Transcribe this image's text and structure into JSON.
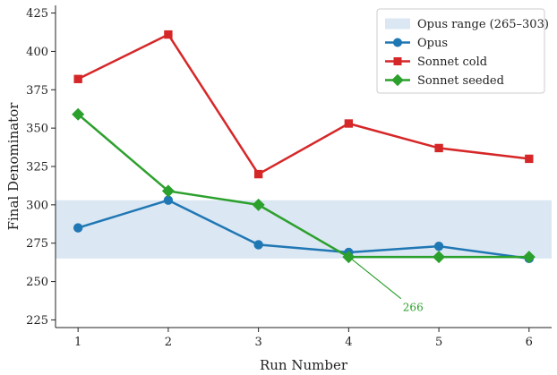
{
  "chart_data": {
    "type": "line",
    "xlabel": "Run Number",
    "ylabel": "Final Denominator",
    "x": [
      1,
      2,
      3,
      4,
      5,
      6
    ],
    "xlim": [
      0.75,
      6.25
    ],
    "ylim": [
      220,
      430
    ],
    "yticks": [
      225,
      250,
      275,
      300,
      325,
      350,
      375,
      400,
      425
    ],
    "grid": false,
    "legend_position": "top-right",
    "band": {
      "label": "Opus range (265–303)",
      "from": 265,
      "to": 303,
      "color": "#dbe7f3"
    },
    "series": [
      {
        "name": "Opus",
        "color": "#1f77b4",
        "marker": "circle",
        "values": [
          285,
          303,
          274,
          269,
          273,
          265
        ]
      },
      {
        "name": "Sonnet cold",
        "color": "#d62728",
        "marker": "square",
        "values": [
          382,
          411,
          320,
          353,
          337,
          330
        ]
      },
      {
        "name": "Sonnet seeded",
        "color": "#2ca02c",
        "marker": "diamond",
        "values": [
          359,
          309,
          300,
          266,
          266,
          266
        ]
      }
    ],
    "annotations": [
      {
        "text": "266",
        "point": {
          "x": 4,
          "y": 266
        },
        "text_at": {
          "x": 4.6,
          "y": 233
        },
        "color": "#2ca02c"
      }
    ]
  }
}
